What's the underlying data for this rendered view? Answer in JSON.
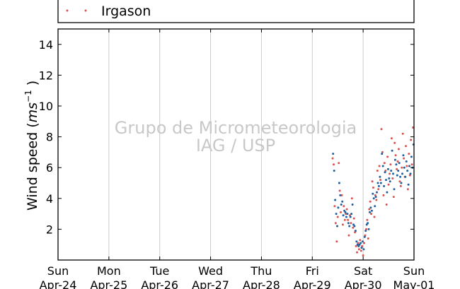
{
  "chart_data": {
    "type": "scatter",
    "title": "",
    "ylabel_main": "Wind speed (",
    "ylabel_unit": "ms",
    "ylabel_exp": "−1",
    "ylabel_close": ")",
    "watermark": [
      "Grupo de Micrometeorologia",
      "IAG / USP"
    ],
    "ylim": [
      0,
      15
    ],
    "yticks": [
      2,
      4,
      6,
      8,
      10,
      12,
      14
    ],
    "xticks": [
      {
        "day": "Sun",
        "date": "Apr-24"
      },
      {
        "day": "Mon",
        "date": "Apr-25"
      },
      {
        "day": "Tue",
        "date": "Apr-26"
      },
      {
        "day": "Wed",
        "date": "Apr-27"
      },
      {
        "day": "Thu",
        "date": "Apr-28"
      },
      {
        "day": "Fri",
        "date": "Apr-29"
      },
      {
        "day": "Sat",
        "date": "Apr-30"
      },
      {
        "day": "Sun",
        "date": "May-01"
      }
    ],
    "grid": "vertical",
    "legend": {
      "placement": "top",
      "entries": [
        "Irgason"
      ]
    },
    "series": [
      {
        "name": "Irgason",
        "color": "#d9534f",
        "x": [
          5.4,
          5.42,
          5.44,
          5.46,
          5.48,
          5.5,
          5.52,
          5.54,
          5.56,
          5.58,
          5.6,
          5.62,
          5.64,
          5.66,
          5.68,
          5.7,
          5.72,
          5.74,
          5.76,
          5.78,
          5.8,
          5.82,
          5.84,
          5.86,
          5.88,
          5.9,
          5.92,
          5.94,
          5.96,
          5.98,
          6.0,
          6.02,
          6.04,
          6.06,
          6.08,
          6.1,
          6.12,
          6.14,
          6.16,
          6.18,
          6.2,
          6.22,
          6.24,
          6.26,
          6.28,
          6.3,
          6.32,
          6.34,
          6.36,
          6.38,
          6.4,
          6.42,
          6.44,
          6.46,
          6.48,
          6.5,
          6.52,
          6.54,
          6.56,
          6.58,
          6.6,
          6.62,
          6.64,
          6.66,
          6.68,
          6.7,
          6.72,
          6.74,
          6.76,
          6.78,
          6.8,
          6.82,
          6.84,
          6.86,
          6.88,
          6.9,
          6.92,
          6.94,
          6.96,
          6.98
        ],
        "y": [
          6.6,
          6.2,
          3.5,
          2.4,
          1.2,
          2.8,
          6.3,
          4.5,
          3.1,
          4.2,
          2.3,
          3.5,
          2.6,
          3.0,
          3.3,
          2.6,
          1.6,
          2.9,
          2.4,
          4.0,
          2.1,
          2.7,
          1.8,
          0.9,
          0.5,
          1.1,
          0.7,
          1.3,
          0.6,
          0.9,
          0.3,
          1.1,
          1.6,
          2.0,
          2.6,
          1.4,
          3.3,
          3.8,
          3.0,
          5.1,
          4.7,
          2.8,
          4.2,
          3.9,
          5.8,
          4.6,
          6.1,
          5.2,
          8.5,
          7.0,
          4.2,
          6.3,
          5.8,
          3.6,
          6.7,
          4.9,
          5.6,
          6.2,
          7.9,
          5.3,
          4.1,
          7.6,
          6.8,
          5.9,
          6.4,
          7.2,
          5.1,
          4.8,
          6.0,
          8.2,
          6.6,
          5.4,
          7.4,
          6.1,
          4.6,
          6.9,
          5.5,
          7.8,
          6.2,
          8.6
        ]
      },
      {
        "name": "",
        "color": "#1f5f9f",
        "x": [
          5.41,
          5.43,
          5.45,
          5.47,
          5.49,
          5.51,
          5.53,
          5.55,
          5.57,
          5.59,
          5.61,
          5.63,
          5.65,
          5.67,
          5.69,
          5.71,
          5.73,
          5.75,
          5.77,
          5.79,
          5.81,
          5.83,
          5.85,
          5.87,
          5.89,
          5.91,
          5.93,
          5.95,
          5.97,
          5.99,
          6.01,
          6.03,
          6.05,
          6.07,
          6.09,
          6.11,
          6.13,
          6.15,
          6.17,
          6.19,
          6.21,
          6.23,
          6.25,
          6.27,
          6.29,
          6.31,
          6.33,
          6.35,
          6.37,
          6.39,
          6.41,
          6.43,
          6.45,
          6.47,
          6.49,
          6.51,
          6.53,
          6.55,
          6.57,
          6.59,
          6.61,
          6.63,
          6.65,
          6.67,
          6.69,
          6.71,
          6.73,
          6.75,
          6.77,
          6.79,
          6.81,
          6.83,
          6.85,
          6.87,
          6.89,
          6.91,
          6.93,
          6.95,
          6.97,
          6.99
        ],
        "y": [
          6.9,
          5.8,
          3.9,
          3.0,
          2.2,
          3.4,
          5.0,
          4.2,
          3.6,
          3.8,
          2.9,
          3.2,
          3.1,
          2.8,
          3.0,
          2.4,
          2.2,
          2.8,
          3.0,
          3.6,
          2.3,
          2.2,
          1.9,
          1.2,
          1.0,
          0.9,
          1.0,
          1.1,
          0.8,
          1.2,
          0.7,
          1.5,
          1.9,
          2.3,
          2.4,
          2.0,
          3.1,
          3.4,
          3.2,
          4.3,
          4.0,
          3.5,
          4.1,
          4.4,
          5.0,
          4.8,
          5.4,
          5.0,
          6.9,
          6.1,
          4.8,
          5.7,
          5.2,
          4.4,
          5.9,
          5.3,
          5.1,
          5.8,
          7.1,
          5.6,
          4.6,
          6.5,
          6.2,
          5.5,
          5.8,
          6.3,
          5.4,
          5.0,
          5.6,
          6.8,
          6.0,
          5.4,
          6.4,
          5.8,
          4.9,
          6.1,
          5.6,
          6.7,
          6.0,
          7.5
        ]
      }
    ]
  }
}
